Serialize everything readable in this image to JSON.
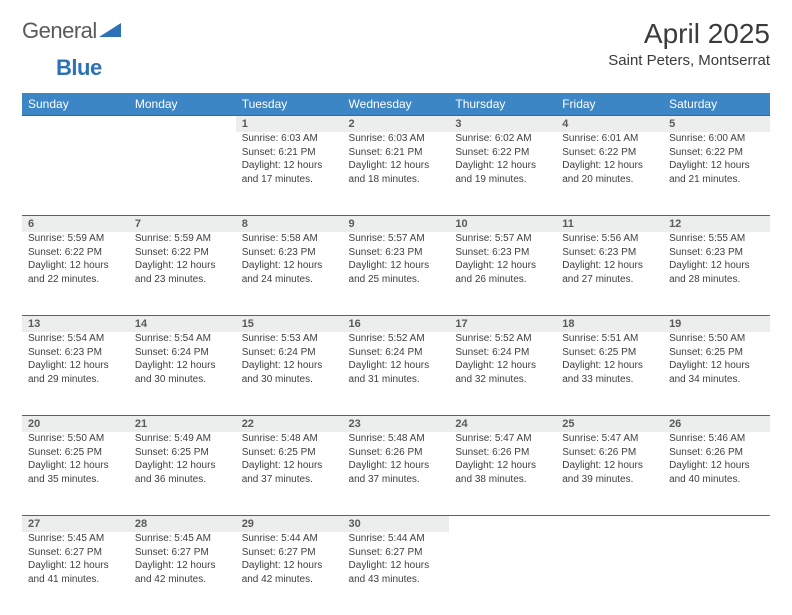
{
  "logo": {
    "text_gray": "General",
    "text_blue": "Blue",
    "mark_color": "#2d72b7"
  },
  "title": {
    "month": "April 2025",
    "location": "Saint Peters, Montserrat"
  },
  "style": {
    "header_bg": "#3c86c6",
    "header_fg": "#ffffff",
    "daynum_bg": "#eceded",
    "daynum_fg": "#5a5a5a",
    "cell_fg": "#404040",
    "rule_color": "#2f6aa0",
    "page_bg": "#ffffff"
  },
  "weekdays": [
    "Sunday",
    "Monday",
    "Tuesday",
    "Wednesday",
    "Thursday",
    "Friday",
    "Saturday"
  ],
  "weeks": [
    [
      null,
      null,
      {
        "n": "1",
        "sr": "6:03 AM",
        "ss": "6:21 PM",
        "dl": "12 hours and 17 minutes."
      },
      {
        "n": "2",
        "sr": "6:03 AM",
        "ss": "6:21 PM",
        "dl": "12 hours and 18 minutes."
      },
      {
        "n": "3",
        "sr": "6:02 AM",
        "ss": "6:22 PM",
        "dl": "12 hours and 19 minutes."
      },
      {
        "n": "4",
        "sr": "6:01 AM",
        "ss": "6:22 PM",
        "dl": "12 hours and 20 minutes."
      },
      {
        "n": "5",
        "sr": "6:00 AM",
        "ss": "6:22 PM",
        "dl": "12 hours and 21 minutes."
      }
    ],
    [
      {
        "n": "6",
        "sr": "5:59 AM",
        "ss": "6:22 PM",
        "dl": "12 hours and 22 minutes."
      },
      {
        "n": "7",
        "sr": "5:59 AM",
        "ss": "6:22 PM",
        "dl": "12 hours and 23 minutes."
      },
      {
        "n": "8",
        "sr": "5:58 AM",
        "ss": "6:23 PM",
        "dl": "12 hours and 24 minutes."
      },
      {
        "n": "9",
        "sr": "5:57 AM",
        "ss": "6:23 PM",
        "dl": "12 hours and 25 minutes."
      },
      {
        "n": "10",
        "sr": "5:57 AM",
        "ss": "6:23 PM",
        "dl": "12 hours and 26 minutes."
      },
      {
        "n": "11",
        "sr": "5:56 AM",
        "ss": "6:23 PM",
        "dl": "12 hours and 27 minutes."
      },
      {
        "n": "12",
        "sr": "5:55 AM",
        "ss": "6:23 PM",
        "dl": "12 hours and 28 minutes."
      }
    ],
    [
      {
        "n": "13",
        "sr": "5:54 AM",
        "ss": "6:23 PM",
        "dl": "12 hours and 29 minutes."
      },
      {
        "n": "14",
        "sr": "5:54 AM",
        "ss": "6:24 PM",
        "dl": "12 hours and 30 minutes."
      },
      {
        "n": "15",
        "sr": "5:53 AM",
        "ss": "6:24 PM",
        "dl": "12 hours and 30 minutes."
      },
      {
        "n": "16",
        "sr": "5:52 AM",
        "ss": "6:24 PM",
        "dl": "12 hours and 31 minutes."
      },
      {
        "n": "17",
        "sr": "5:52 AM",
        "ss": "6:24 PM",
        "dl": "12 hours and 32 minutes."
      },
      {
        "n": "18",
        "sr": "5:51 AM",
        "ss": "6:25 PM",
        "dl": "12 hours and 33 minutes."
      },
      {
        "n": "19",
        "sr": "5:50 AM",
        "ss": "6:25 PM",
        "dl": "12 hours and 34 minutes."
      }
    ],
    [
      {
        "n": "20",
        "sr": "5:50 AM",
        "ss": "6:25 PM",
        "dl": "12 hours and 35 minutes."
      },
      {
        "n": "21",
        "sr": "5:49 AM",
        "ss": "6:25 PM",
        "dl": "12 hours and 36 minutes."
      },
      {
        "n": "22",
        "sr": "5:48 AM",
        "ss": "6:25 PM",
        "dl": "12 hours and 37 minutes."
      },
      {
        "n": "23",
        "sr": "5:48 AM",
        "ss": "6:26 PM",
        "dl": "12 hours and 37 minutes."
      },
      {
        "n": "24",
        "sr": "5:47 AM",
        "ss": "6:26 PM",
        "dl": "12 hours and 38 minutes."
      },
      {
        "n": "25",
        "sr": "5:47 AM",
        "ss": "6:26 PM",
        "dl": "12 hours and 39 minutes."
      },
      {
        "n": "26",
        "sr": "5:46 AM",
        "ss": "6:26 PM",
        "dl": "12 hours and 40 minutes."
      }
    ],
    [
      {
        "n": "27",
        "sr": "5:45 AM",
        "ss": "6:27 PM",
        "dl": "12 hours and 41 minutes."
      },
      {
        "n": "28",
        "sr": "5:45 AM",
        "ss": "6:27 PM",
        "dl": "12 hours and 42 minutes."
      },
      {
        "n": "29",
        "sr": "5:44 AM",
        "ss": "6:27 PM",
        "dl": "12 hours and 42 minutes."
      },
      {
        "n": "30",
        "sr": "5:44 AM",
        "ss": "6:27 PM",
        "dl": "12 hours and 43 minutes."
      },
      null,
      null,
      null
    ]
  ],
  "labels": {
    "sunrise": "Sunrise: ",
    "sunset": "Sunset: ",
    "daylight": "Daylight: "
  }
}
